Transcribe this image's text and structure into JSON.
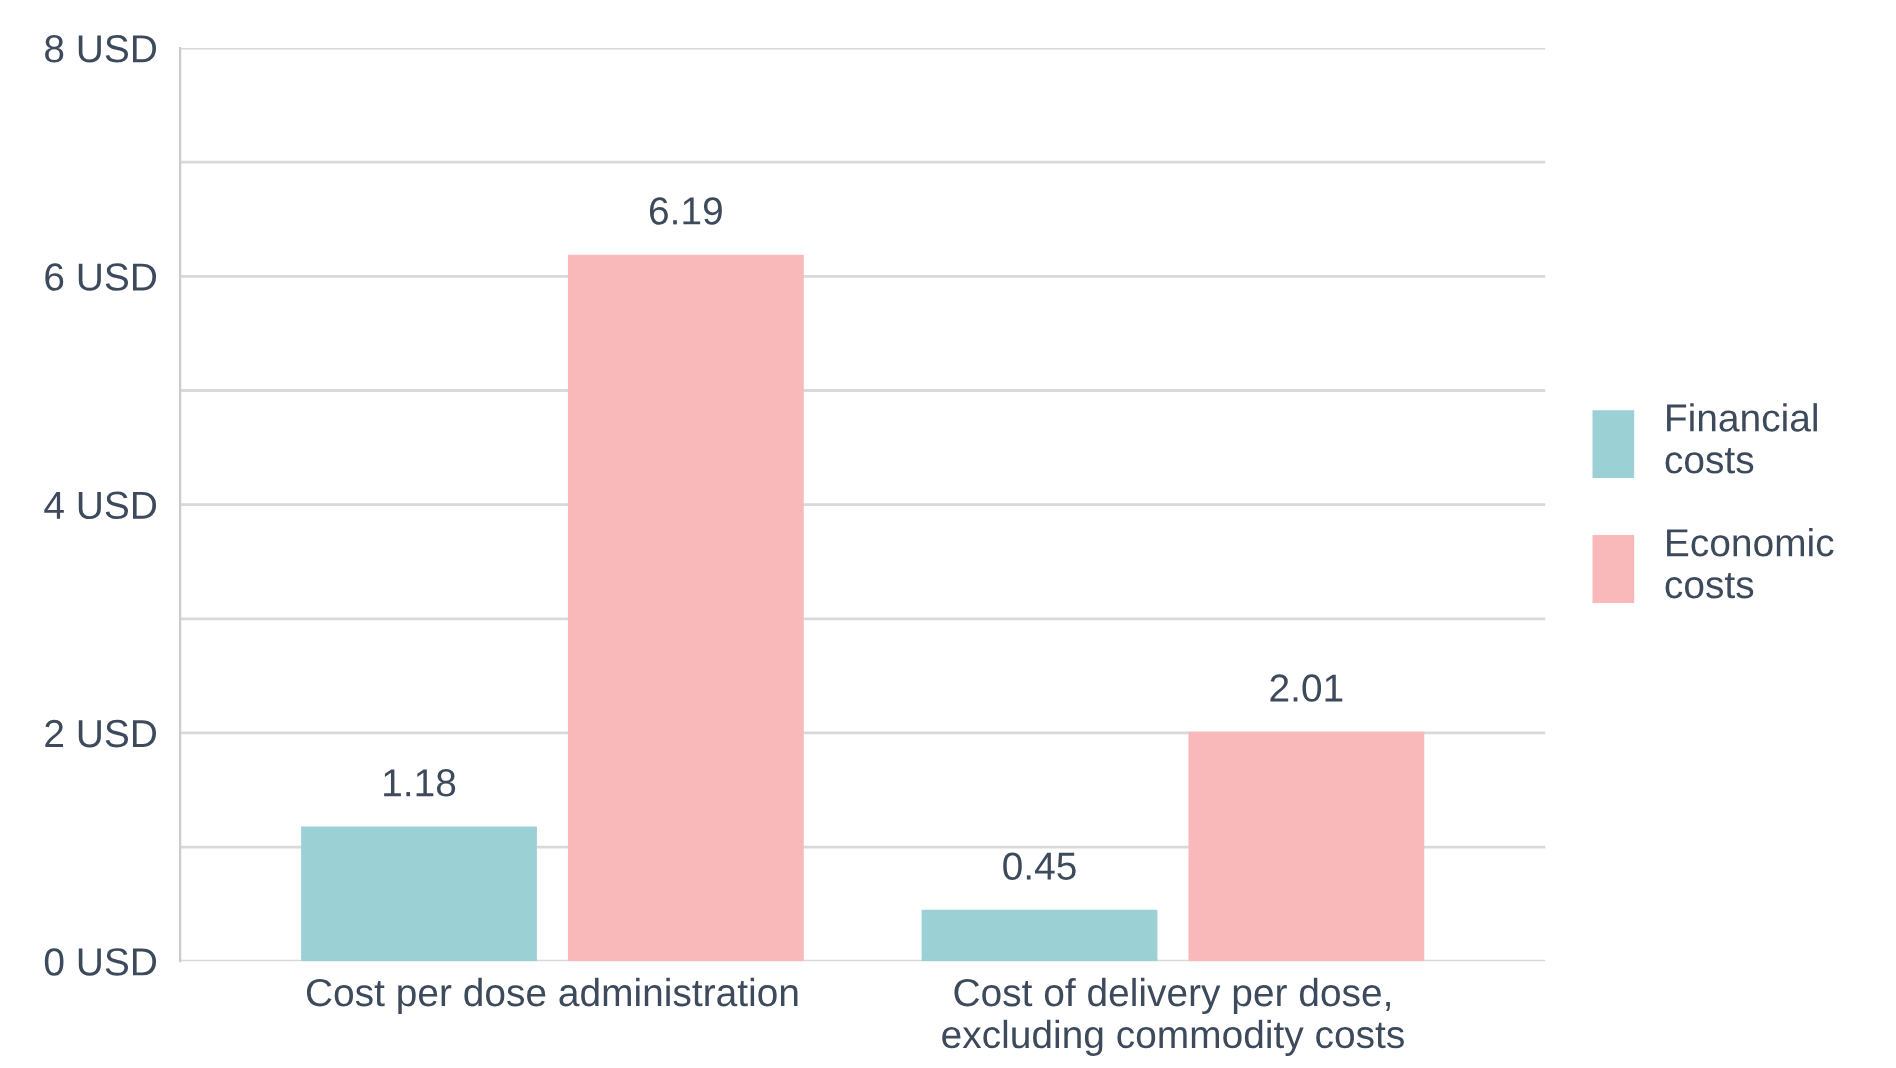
{
  "chart_data": {
    "type": "bar",
    "categories": [
      "Cost per dose administration",
      "Cost of delivery per dose,\nexcluding commodity costs"
    ],
    "series": [
      {
        "name": "Financial\ncosts",
        "color": "#9bd0d5",
        "values": [
          1.18,
          0.45
        ]
      },
      {
        "name": "Economic\ncosts",
        "color": "#f9b8b9",
        "values": [
          6.19,
          2.01
        ]
      }
    ],
    "ylim": [
      0,
      8
    ],
    "yticks": [
      {
        "value": 0,
        "label": "0 USD"
      },
      {
        "value": 1,
        "label": null
      },
      {
        "value": 2,
        "label": "2 USD"
      },
      {
        "value": 3,
        "label": null
      },
      {
        "value": 4,
        "label": "4 USD"
      },
      {
        "value": 5,
        "label": null
      },
      {
        "value": 6,
        "label": "6 USD"
      },
      {
        "value": 7,
        "label": null
      },
      {
        "value": 8,
        "label": "8 USD"
      }
    ],
    "grid": "y",
    "legend": "right",
    "data_labels": true
  }
}
